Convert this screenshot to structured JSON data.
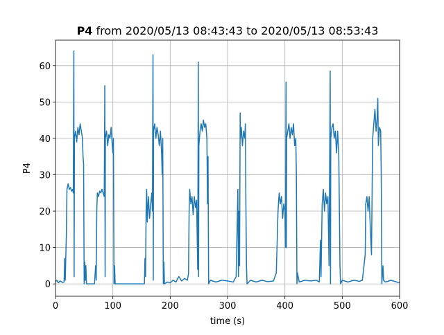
{
  "chart_data": {
    "type": "line",
    "title": {
      "bold": "P4",
      "rest": "from 2020/05/13 08:43:43 to 2020/05/13 08:53:43"
    },
    "x_label": "time (s)",
    "y_label": "P4",
    "color": "#1f77b4",
    "grid": true,
    "xlim": [
      0,
      600
    ],
    "xticks": [
      0,
      100,
      200,
      300,
      400,
      500,
      600
    ],
    "ylim": [
      -3.4,
      67
    ],
    "yticks": [
      0,
      10,
      20,
      30,
      40,
      50,
      60
    ],
    "x": [
      0,
      2,
      5,
      8,
      12,
      15,
      16,
      17,
      19,
      20,
      22,
      24,
      26,
      28,
      30,
      31,
      32,
      32.5,
      33,
      35,
      37,
      39,
      41,
      43,
      45,
      47,
      48,
      49,
      50,
      51,
      52,
      53,
      54,
      60,
      68,
      70,
      71,
      72,
      73,
      75,
      77,
      79,
      81,
      83,
      85,
      86,
      86.5,
      87,
      89,
      91,
      93,
      95,
      97,
      99,
      100,
      101,
      102,
      103,
      104,
      120,
      140,
      155,
      156,
      157,
      158,
      159,
      160,
      162,
      164,
      166,
      168,
      169,
      170,
      170.5,
      171,
      173,
      175,
      177,
      179,
      181,
      183,
      185,
      186,
      187,
      188,
      189,
      190,
      195,
      200,
      205,
      210,
      215,
      220,
      225,
      230,
      232,
      233,
      234,
      236,
      238,
      240,
      242,
      244,
      246,
      248,
      249,
      249.5,
      250,
      252,
      254,
      256,
      258,
      260,
      262,
      264,
      265,
      266,
      267,
      270,
      280,
      290,
      300,
      310,
      315,
      318,
      319,
      320,
      321,
      322,
      322.5,
      324,
      326,
      328,
      330,
      331,
      332,
      333,
      334,
      340,
      350,
      360,
      370,
      380,
      385,
      388,
      390,
      392,
      394,
      396,
      398,
      400,
      401,
      402,
      402.5,
      403,
      405,
      407,
      409,
      411,
      413,
      415,
      417,
      419,
      420,
      421,
      422,
      425,
      435,
      445,
      455,
      460,
      462,
      463,
      465,
      467,
      469,
      471,
      473,
      475,
      477,
      479,
      479.5,
      480,
      482,
      484,
      486,
      488,
      490,
      492,
      494,
      495,
      496,
      497,
      500,
      510,
      520,
      530,
      535,
      540,
      541,
      543,
      545,
      547,
      549,
      551,
      553,
      555,
      557,
      559,
      561,
      562,
      563,
      565,
      567,
      568,
      569,
      571,
      572,
      575,
      585,
      595,
      600
    ],
    "values": [
      0.5,
      1,
      0.3,
      0.8,
      0.4,
      0.5,
      7,
      1,
      14,
      26,
      27.5,
      26,
      26.5,
      25.5,
      26,
      25,
      64,
      2,
      40,
      42,
      39,
      43,
      41,
      44,
      42,
      40,
      35,
      33,
      0,
      6,
      1,
      5,
      0,
      0,
      0,
      5,
      1,
      20,
      25,
      24,
      25.5,
      25,
      26,
      25,
      24,
      54.5,
      2,
      40,
      42,
      38,
      41,
      40,
      43,
      38,
      36,
      40,
      0,
      5,
      0,
      0,
      0,
      0,
      7,
      2,
      20,
      26,
      17,
      24,
      18,
      22,
      25,
      20,
      63,
      1,
      42,
      44,
      40,
      43,
      41,
      38,
      42,
      36,
      30,
      40,
      0,
      6,
      0,
      0.5,
      0.3,
      1,
      0.5,
      2,
      0.8,
      1.5,
      1,
      3,
      20,
      26,
      22,
      24,
      19,
      24,
      21,
      23,
      4,
      61,
      2,
      38,
      42,
      44,
      42,
      45,
      43,
      44,
      40,
      22,
      35,
      0,
      1,
      0.5,
      1,
      0.8,
      0.5,
      2,
      26,
      2,
      20,
      5,
      47,
      40,
      43,
      38,
      42,
      40,
      44,
      22,
      5,
      0,
      1,
      0.5,
      1,
      0.6,
      0.8,
      3,
      20,
      25,
      22,
      24,
      18,
      22,
      20,
      10,
      55.5,
      10,
      40,
      42,
      44,
      40,
      43,
      41,
      44,
      38,
      40,
      30,
      0,
      3,
      0.5,
      1,
      0.8,
      1,
      0.5,
      12,
      2,
      22,
      26,
      20,
      25,
      22,
      24,
      5,
      58.5,
      0,
      40,
      43,
      44,
      40,
      42,
      36,
      42,
      35,
      20,
      5,
      0,
      1,
      0.5,
      1,
      0.7,
      1,
      8,
      22,
      24,
      20,
      24,
      15,
      8,
      40,
      44,
      48,
      42,
      46,
      51,
      38,
      43,
      42,
      30,
      0,
      5,
      1,
      0.5,
      1,
      0.5,
      0.3
    ]
  }
}
